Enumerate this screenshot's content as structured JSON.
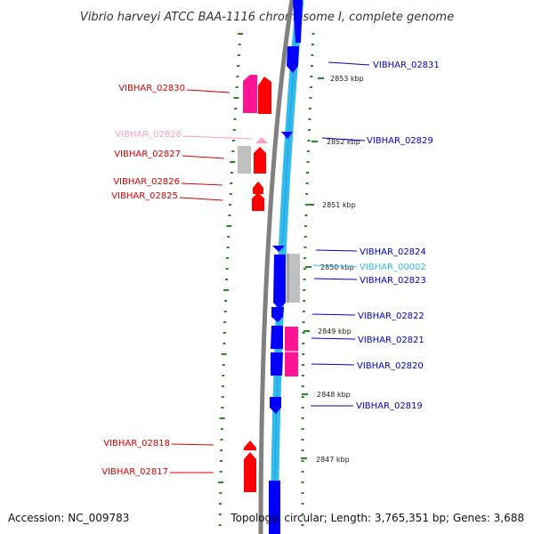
{
  "title": "Vibrio harveyi ATCC BAA-1116 chromosome I, complete genome",
  "footer": {
    "accession": "Accession: NC_009783",
    "topology": "Topology: circular; Length: 3,765,351 bp; Genes: 3,688"
  },
  "colors": {
    "red_gene": "#ff0000",
    "pink_gene": "#ff1493",
    "light_pink_gene": "#ff9ec8",
    "gray_gene": "#c0c0c0",
    "blue_gene": "#0000ff",
    "cyan_band": "#33bbee",
    "backbone": "#808080",
    "tick_green": "#228B22"
  },
  "scale_labels": [
    "2853 kbp",
    "2852 kbp",
    "2851 kbp",
    "2850 kbp",
    "2849 kbp",
    "2848 kbp",
    "2847 kbp"
  ],
  "left_labels": [
    {
      "text": "VIBHAR_02830",
      "color": "#dd0000"
    },
    {
      "text": "VIBHAR_02828",
      "color": "#ff9ec8"
    },
    {
      "text": "VIBHAR_02827",
      "color": "#dd0000"
    },
    {
      "text": "VIBHAR_02826",
      "color": "#dd0000"
    },
    {
      "text": "VIBHAR_02825",
      "color": "#dd0000"
    },
    {
      "text": "VIBHAR_02818",
      "color": "#dd0000"
    },
    {
      "text": "VIBHAR_02817",
      "color": "#dd0000"
    }
  ],
  "right_labels": [
    {
      "text": "VIBHAR_02831",
      "color": "#0000cc"
    },
    {
      "text": "VIBHAR_02829",
      "color": "#0000cc"
    },
    {
      "text": "VIBHAR_02824",
      "color": "#0000cc"
    },
    {
      "text": "VIBHAR_00002",
      "color": "#33bbee"
    },
    {
      "text": "VIBHAR_02823",
      "color": "#0000cc"
    },
    {
      "text": "VIBHAR_02822",
      "color": "#0000cc"
    },
    {
      "text": "VIBHAR_02821",
      "color": "#0000cc"
    },
    {
      "text": "VIBHAR_02820",
      "color": "#0000cc"
    },
    {
      "text": "VIBHAR_02819",
      "color": "#0000cc"
    }
  ]
}
